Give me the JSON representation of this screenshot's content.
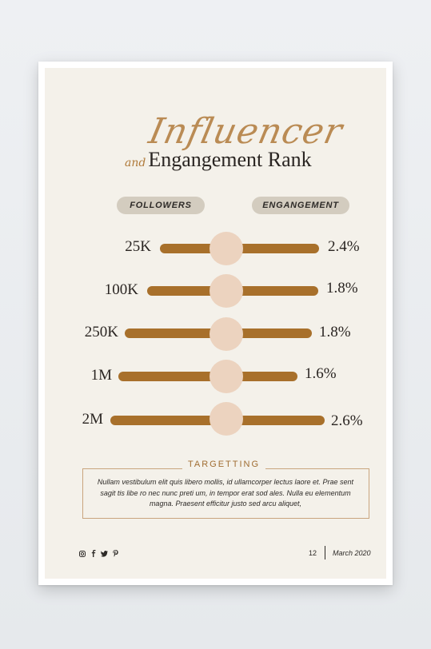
{
  "title": {
    "script": "Influencer",
    "and": "and",
    "main": "Engangement Rank"
  },
  "columns": {
    "followers": "FOLLOWERS",
    "engagement": "ENGANGEMENT"
  },
  "rows": [
    {
      "followers": "25K",
      "engagement": "2.4%"
    },
    {
      "followers": "100K",
      "engagement": "1.8%"
    },
    {
      "followers": "250K",
      "engagement": "1.8%"
    },
    {
      "followers": "1M",
      "engagement": "1.6%"
    },
    {
      "followers": "2M",
      "engagement": "2.6%"
    }
  ],
  "targeting": {
    "title": "TARGETTING",
    "text": "Nullam vestibulum elit quis libero mollis, id ullamcorper lectus laore et. Prae sent sagit tis libe ro nec nunc preti um, in tempor erat sod ales. Nulla eu elementum magna. Praesent efficitur justo sed arcu aliquet,"
  },
  "footer": {
    "social_icons": [
      "instagram-icon",
      "facebook-icon",
      "twitter-icon",
      "pinterest-icon"
    ],
    "page_number": "12",
    "date": "March 2020"
  },
  "colors": {
    "background": "#f4f1ea",
    "bar": "#a8702b",
    "knob": "#ecd3bf",
    "pill": "#d3ccbf",
    "accent": "#b07a3a"
  }
}
